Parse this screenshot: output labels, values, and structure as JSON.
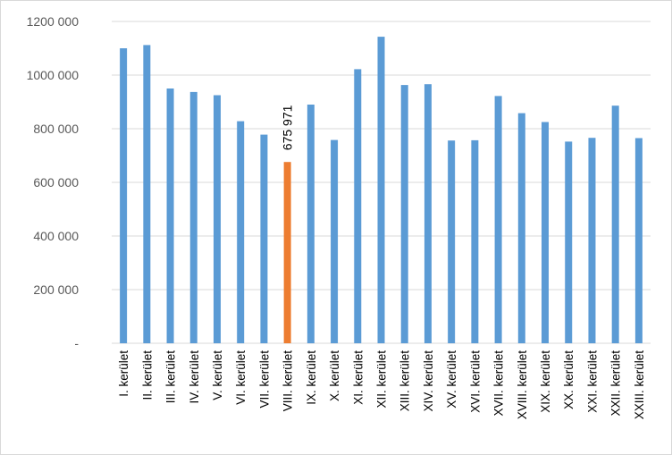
{
  "chart_data": {
    "type": "bar",
    "categories": [
      "I. kerület",
      "II. kerület",
      "III. kerület",
      "IV. kerület",
      "V. kerület",
      "VI. kerület",
      "VII. kerület",
      "VIII. kerület",
      "IX. kerület",
      "X. kerület",
      "XI. kerület",
      "XII. kerület",
      "XIII. kerület",
      "XIV. kerület",
      "XV. kerület",
      "XVI. kerület",
      "XVII. kerület",
      "XVIII. kerület",
      "XIX. kerület",
      "XX. kerület",
      "XXI. kerület",
      "XXII. kerület",
      "XXIII. kerület"
    ],
    "values": [
      1100000,
      1112000,
      950000,
      937000,
      925000,
      828000,
      778000,
      675971,
      890000,
      758000,
      1022000,
      1143000,
      963000,
      966000,
      756000,
      757000,
      922000,
      858000,
      825000,
      752000,
      766000,
      886000,
      765000
    ],
    "highlight_index": 7,
    "highlight_label": "675 971",
    "ylim": [
      0,
      1200000
    ],
    "y_ticks": [
      0,
      200000,
      400000,
      600000,
      800000,
      1000000,
      1200000
    ],
    "y_tick_labels": [
      "-",
      "200 000",
      "400 000",
      "600 000",
      "800 000",
      "1000 000",
      "1200 000"
    ],
    "grid": true,
    "legend": "none",
    "colors": {
      "bar": "#5b9bd5",
      "highlight": "#ed7d31",
      "grid": "#d9d9d9"
    }
  }
}
